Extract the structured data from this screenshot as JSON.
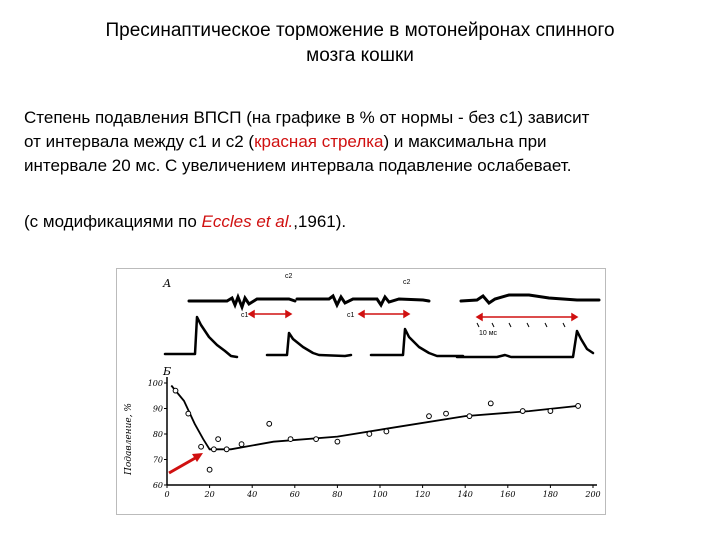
{
  "slide": {
    "title_line1": "Пресинаптическое торможение в мотонейронах спинного",
    "title_line2": "мозга кошки",
    "body_line1": "Степень подавления ВПСП (на графике в % от нормы - без с1) зависит",
    "body_line2_pre": "от интервала между с1 и с2  (",
    "body_line2_red": "красная стрелка",
    "body_line2_post": ") и максимальна при",
    "body_line3": "интервале 20 мс. С увеличением интервала подавление ослабевает.",
    "ref_pre": "(с модификациями по ",
    "ref_author": "Eccles et al.",
    "ref_post": ",1961)."
  },
  "figure": {
    "panel_a_label": "А",
    "panel_b_label": "Б",
    "c1_label": "с1",
    "c2_label": "с2",
    "scale_label": "10 мс"
  },
  "colors": {
    "accent": "#d01010",
    "trace": "#000000"
  },
  "chart_data": {
    "type": "scatter",
    "title": "",
    "xlabel": "",
    "ylabel": "Подавление, %",
    "xlim": [
      0,
      200
    ],
    "ylim": [
      60,
      100
    ],
    "x_ticks": [
      0,
      20,
      40,
      60,
      80,
      100,
      120,
      140,
      160,
      180,
      200
    ],
    "y_ticks": [
      60,
      70,
      80,
      90,
      100
    ],
    "points": [
      {
        "x": 4,
        "y": 97
      },
      {
        "x": 10,
        "y": 88
      },
      {
        "x": 16,
        "y": 75
      },
      {
        "x": 20,
        "y": 66
      },
      {
        "x": 22,
        "y": 74
      },
      {
        "x": 24,
        "y": 78
      },
      {
        "x": 28,
        "y": 74
      },
      {
        "x": 35,
        "y": 76
      },
      {
        "x": 48,
        "y": 84
      },
      {
        "x": 58,
        "y": 78
      },
      {
        "x": 70,
        "y": 78
      },
      {
        "x": 80,
        "y": 77
      },
      {
        "x": 95,
        "y": 80
      },
      {
        "x": 103,
        "y": 81
      },
      {
        "x": 123,
        "y": 87
      },
      {
        "x": 131,
        "y": 88
      },
      {
        "x": 142,
        "y": 87
      },
      {
        "x": 152,
        "y": 92
      },
      {
        "x": 167,
        "y": 89
      },
      {
        "x": 180,
        "y": 89
      },
      {
        "x": 193,
        "y": 91
      }
    ],
    "curve": [
      {
        "x": 2,
        "y": 99
      },
      {
        "x": 8,
        "y": 93
      },
      {
        "x": 13,
        "y": 84
      },
      {
        "x": 17,
        "y": 78
      },
      {
        "x": 20,
        "y": 74
      },
      {
        "x": 30,
        "y": 74
      },
      {
        "x": 50,
        "y": 77
      },
      {
        "x": 80,
        "y": 79
      },
      {
        "x": 110,
        "y": 83
      },
      {
        "x": 140,
        "y": 87
      },
      {
        "x": 170,
        "y": 89
      },
      {
        "x": 193,
        "y": 91
      }
    ]
  }
}
